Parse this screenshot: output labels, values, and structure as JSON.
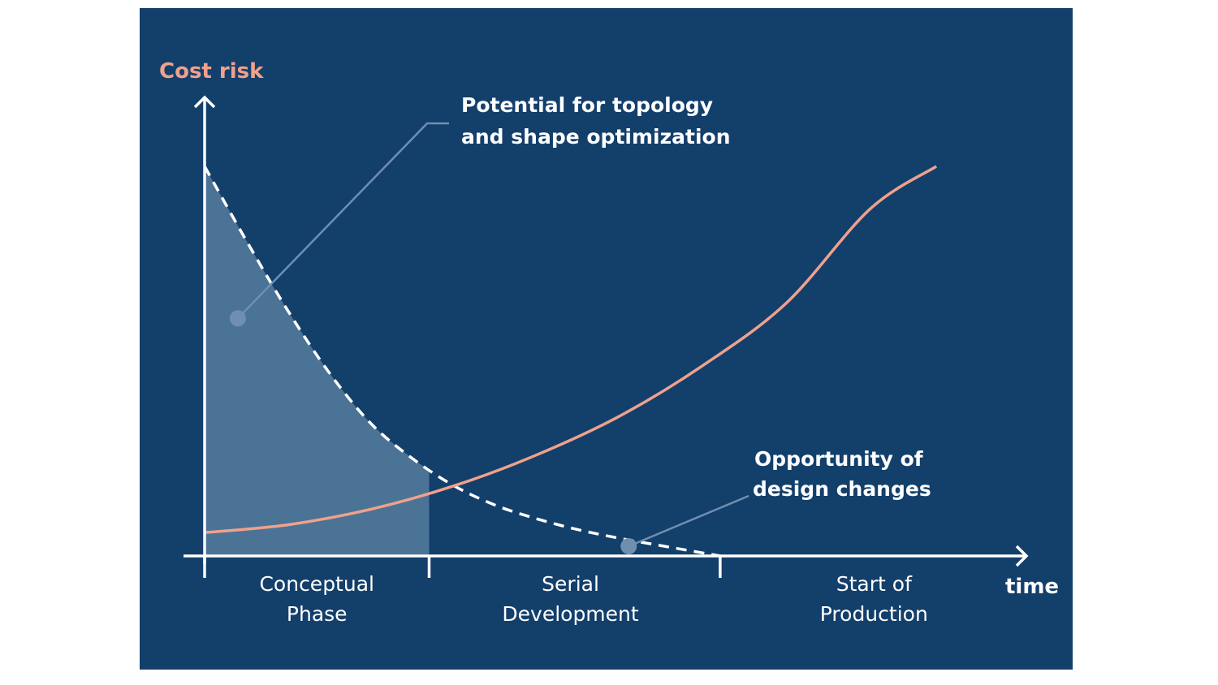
{
  "colors": {
    "background": "#133f6b",
    "cost_curve": "#f0a18c",
    "opportunity_curve": "#ffffff",
    "shaded_area": "#4b7396",
    "callout": "#6f8fb0",
    "axis": "#ffffff",
    "text": "#ffffff",
    "ylabel": "#f0a18c"
  },
  "chart_data": {
    "type": "line",
    "title": "",
    "ylabel": "Cost risk",
    "xlabel": "time",
    "xlim": [
      0,
      100
    ],
    "ylim": [
      0,
      100
    ],
    "phases": [
      {
        "label_line1": "Conceptual",
        "label_line2": "Phase",
        "start": 0,
        "end": 27
      },
      {
        "label_line1": "Serial",
        "label_line2": "Development",
        "start": 27,
        "end": 62
      },
      {
        "label_line1": "Start of",
        "label_line2": "Production",
        "start": 62,
        "end": 100
      }
    ],
    "phase_boundaries": [
      0,
      27,
      62
    ],
    "series": [
      {
        "name": "Cost risk",
        "style": "solid",
        "x": [
          0,
          10,
          20,
          30,
          40,
          50,
          60,
          70,
          80,
          88
        ],
        "y": [
          6,
          8,
          12,
          18,
          26,
          36,
          49,
          65,
          89,
          100
        ]
      },
      {
        "name": "Opportunity of design changes",
        "style": "dashed",
        "x": [
          0,
          5,
          10,
          15,
          20,
          25,
          30,
          35,
          40,
          45,
          50,
          55,
          62
        ],
        "y": [
          100,
          81,
          63,
          47,
          34,
          25,
          18,
          13,
          9.5,
          6.7,
          4.5,
          2.6,
          0
        ]
      }
    ],
    "shaded_region": {
      "name": "Potential for topology and shape optimization",
      "x_start": 0,
      "x_end": 27
    },
    "annotations": [
      {
        "id": "potential",
        "line1": "Potential for topology",
        "line2": "and shape optimization",
        "anchor_x": 4,
        "anchor_y": 61
      },
      {
        "id": "opportunity",
        "line1": "Opportunity of",
        "line2": "design changes",
        "anchor_x": 51,
        "anchor_y": 2.5
      }
    ]
  }
}
